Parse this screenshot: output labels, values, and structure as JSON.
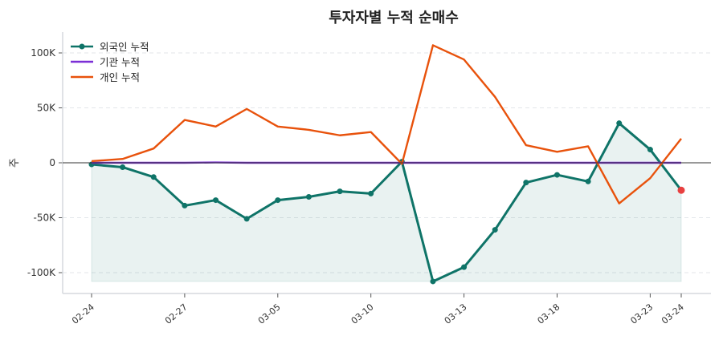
{
  "chart_data": {
    "type": "line",
    "title": "투자자별 누적 순매수",
    "xlabel": "",
    "ylabel": "주",
    "categories": [
      "02-24",
      "",
      "",
      "02-27",
      "",
      "",
      "03-05",
      "",
      "",
      "03-10",
      "",
      "",
      "03-13",
      "",
      "",
      "03-18",
      "",
      "",
      "03-23",
      "03-24"
    ],
    "ylim": [
      -118000,
      118000
    ],
    "yticks": [
      -100000,
      -50000,
      0,
      50000,
      100000
    ],
    "ytick_labels": [
      "-100K",
      "-50K",
      "0",
      "50K",
      "100K"
    ],
    "grid": "horizontal dashed",
    "legend": "top-left",
    "series": [
      {
        "name": "외국인 누적",
        "color": "#0f7468",
        "markers": true,
        "fill": true,
        "values": [
          -1500,
          -4000,
          -13000,
          -39000,
          -34000,
          -51000,
          -34000,
          -31000,
          -26000,
          -28000,
          1000,
          -108000,
          -95000,
          -61000,
          -18000,
          -11000,
          -17000,
          36000,
          12000,
          -25000
        ]
      },
      {
        "name": "기관 누적",
        "color": "#7b2fd6",
        "markers": false,
        "fill": false,
        "values": [
          0,
          0,
          0,
          0,
          300,
          0,
          0,
          0,
          0,
          0,
          0,
          0,
          0,
          0,
          0,
          0,
          0,
          0,
          0,
          0
        ]
      },
      {
        "name": "개인 누적",
        "color": "#e8520c",
        "markers": false,
        "fill": false,
        "values": [
          1500,
          3500,
          13000,
          39000,
          33000,
          49000,
          33000,
          30000,
          25000,
          28000,
          -1000,
          107000,
          94000,
          60000,
          16000,
          10000,
          15000,
          -37000,
          -14000,
          22000
        ]
      }
    ],
    "highlight_last_point_color": "#e84040"
  }
}
